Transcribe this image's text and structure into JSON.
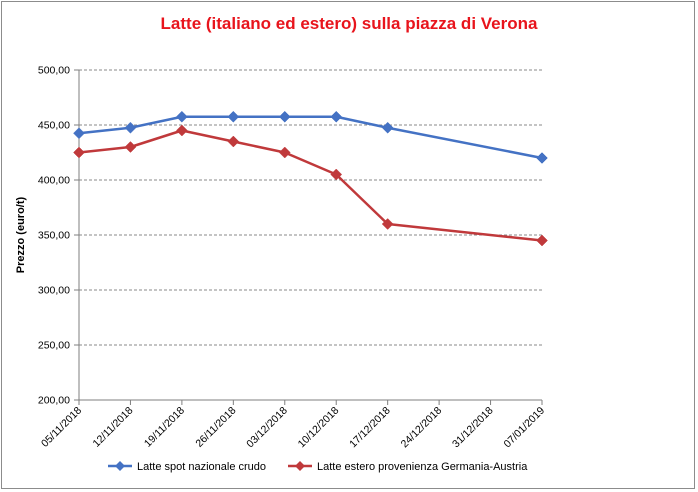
{
  "chart_data": {
    "type": "line",
    "title": "Latte (italiano ed estero) sulla piazza di Verona",
    "ylabel": "Prezzo (euro/t)",
    "xlabel": "",
    "ylim": [
      200,
      500
    ],
    "y_ticks": [
      "200,00",
      "250,00",
      "300,00",
      "350,00",
      "400,00",
      "450,00",
      "500,00"
    ],
    "x_ticks": [
      "05/11/2018",
      "12/11/2018",
      "19/11/2018",
      "26/11/2018",
      "03/12/2018",
      "10/12/2018",
      "17/12/2018",
      "24/12/2018",
      "31/12/2018",
      "07/01/2019"
    ],
    "grid": true,
    "legend_position": "bottom",
    "series": [
      {
        "name": "Latte spot nazionale crudo",
        "color": "#4472c4",
        "x": [
          "05/11/2018",
          "12/11/2018",
          "19/11/2018",
          "26/11/2018",
          "03/12/2018",
          "10/12/2018",
          "17/12/2018",
          "07/01/2019"
        ],
        "values": [
          442.5,
          447.5,
          457.5,
          457.5,
          457.5,
          457.5,
          447.5,
          420
        ]
      },
      {
        "name": "Latte estero provenienza Germania-Austria",
        "color": "#c0393b",
        "x": [
          "05/11/2018",
          "12/11/2018",
          "19/11/2018",
          "26/11/2018",
          "03/12/2018",
          "10/12/2018",
          "17/12/2018",
          "07/01/2019"
        ],
        "values": [
          425,
          430,
          445,
          435,
          425,
          405,
          360,
          345
        ]
      }
    ]
  }
}
